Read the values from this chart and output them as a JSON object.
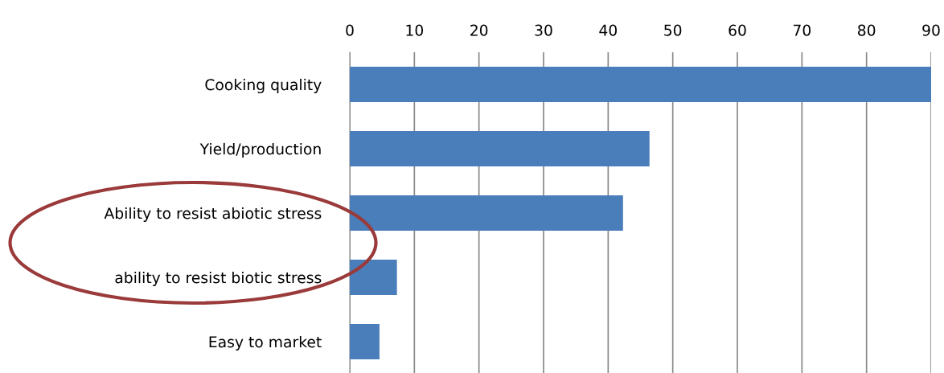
{
  "chart_data": {
    "type": "bar",
    "orientation": "horizontal",
    "categories": [
      "Cooking quality",
      "Yield/production",
      "Ability to resist abiotic stress",
      "ability to resist biotic stress",
      "Easy to market"
    ],
    "values": [
      90,
      46.4,
      42.3,
      7.3,
      4.6
    ],
    "color": "#4a7ebb",
    "xlim": [
      0,
      90
    ],
    "xticks": [
      0,
      10,
      20,
      30,
      40,
      50,
      60,
      70,
      80,
      90
    ],
    "grid": "x"
  }
}
